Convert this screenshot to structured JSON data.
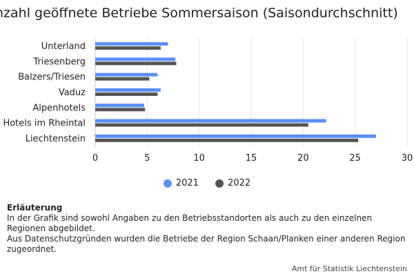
{
  "title": "Anzahl geöffnete Betriebe Sommersaison (Saisondurchschnitt)",
  "chart_data": {
    "type": "bar",
    "orientation": "horizontal",
    "categories": [
      "Unterland",
      "Triesenberg",
      "Balzers/Triesen",
      "Vaduz",
      "Alpenhotels",
      "Hotels im Rheintal",
      "Liechtenstein"
    ],
    "series": [
      {
        "name": "2021",
        "color": "#5b8ff9",
        "values": [
          7.0,
          7.7,
          6.0,
          6.3,
          4.7,
          22.2,
          27.0
        ]
      },
      {
        "name": "2022",
        "color": "#555555",
        "values": [
          6.3,
          7.8,
          5.2,
          6.0,
          4.8,
          20.5,
          25.3
        ]
      }
    ],
    "xlim": [
      0,
      30
    ],
    "xticks": [
      "0",
      "5",
      "10",
      "15",
      "20",
      "25",
      "30"
    ],
    "grid": true,
    "legend": "bottom"
  },
  "notes": {
    "heading": "Erläuterung",
    "line1": "In der Grafik sind sowohl Angaben zu den Betriebsstandorten als auch zu den einzelnen Regionen abgebildet.",
    "line2": "Aus Datenschutzgründen wurden die Betriebe der Region Schaan/Planken einer anderen Region zugeordnet."
  },
  "source": "Amt für Statistik Liechtenstein"
}
